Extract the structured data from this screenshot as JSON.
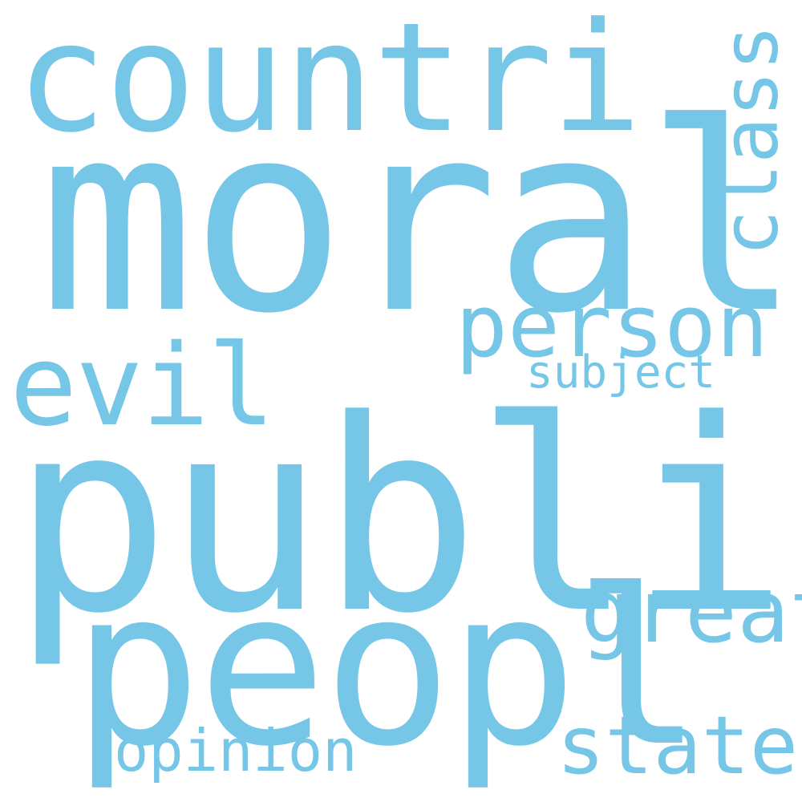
{
  "word_cloud": {
    "color": "#75c6e7",
    "background": "#ffffff",
    "words": {
      "moral": "moral",
      "public": "public",
      "countri": "countri",
      "peopl": "peopl",
      "person": "person",
      "evil": "evil",
      "class": "class",
      "subject": "subject",
      "great": "great",
      "state": "state",
      "opinion": "opinion"
    }
  }
}
